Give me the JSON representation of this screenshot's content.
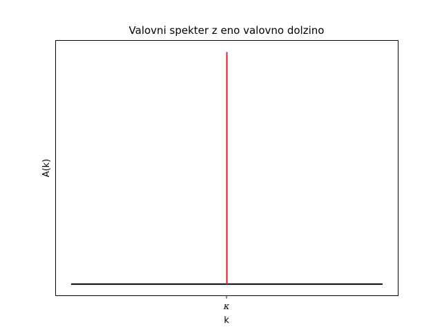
{
  "chart_data": {
    "type": "line",
    "title": "Valovni spekter z eno valovno dolzino",
    "xlabel": "k",
    "ylabel": "A(k)",
    "x_ticks": [
      "κ"
    ],
    "grid": false,
    "series": [
      {
        "style": "baseline",
        "color": "#000000",
        "points": [
          [
            -1,
            0
          ],
          [
            1,
            0
          ]
        ]
      },
      {
        "style": "spike",
        "color": "#e41a1c",
        "points": [
          [
            0,
            0
          ],
          [
            0,
            1
          ]
        ]
      }
    ],
    "xlim": [
      -1.1,
      1.1
    ],
    "ylim": [
      -0.05,
      1.05
    ]
  }
}
